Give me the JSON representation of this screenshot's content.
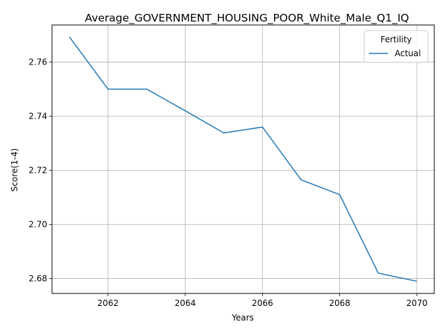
{
  "chart_data": {
    "type": "line",
    "title": "Average_GOVERNMENT_HOUSING_POOR_White_Male_Q1_IQ",
    "xlabel": "Years",
    "ylabel": "Score(1-4)",
    "xlim": [
      2060.55,
      2070.45
    ],
    "ylim": [
      2.6745,
      2.7737
    ],
    "xticks": [
      2062,
      2064,
      2066,
      2068,
      2070
    ],
    "xtick_labels": [
      "2062",
      "2064",
      "2066",
      "2068",
      "2070"
    ],
    "yticks": [
      2.68,
      2.7,
      2.72,
      2.74,
      2.76
    ],
    "ytick_labels": [
      "2.68",
      "2.70",
      "2.72",
      "2.74",
      "2.76"
    ],
    "grid": true,
    "legend": {
      "title": "Fertility",
      "placement": "top-right"
    },
    "series": [
      {
        "name": "Actual",
        "color": "#1f77b4",
        "x": [
          2061,
          2062,
          2063,
          2064,
          2065,
          2066,
          2067,
          2068,
          2069,
          2070
        ],
        "y": [
          2.7693,
          2.75,
          2.75,
          2.742,
          2.7338,
          2.736,
          2.7165,
          2.711,
          2.682,
          2.679
        ]
      }
    ]
  }
}
